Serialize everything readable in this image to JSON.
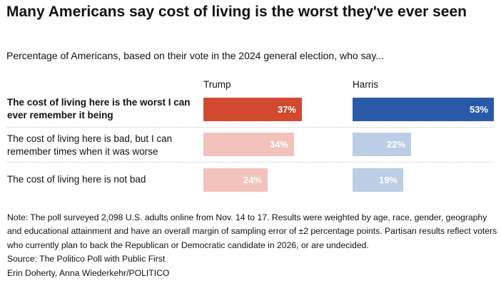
{
  "chart_data": {
    "type": "bar",
    "title": "Many Americans say cost of living is the worst they've ever seen",
    "subtitle": "Percentage of Americans, based on their vote in the 2024 general election, who say...",
    "categories": [
      "The cost of living here is the worst I can ever remember it being",
      "The cost of living here is bad, but I can remember times when it was worse",
      "The cost of living here is not bad"
    ],
    "series": [
      {
        "name": "Trump",
        "values": [
          37,
          34,
          24
        ],
        "labels": [
          "37%",
          "34%",
          "24%"
        ],
        "colors": [
          "#d14a30",
          "#f2c2bb",
          "#f2c2bb"
        ]
      },
      {
        "name": "Harris",
        "values": [
          53,
          22,
          19
        ],
        "labels": [
          "53%",
          "22%",
          "19%"
        ],
        "colors": [
          "#2a5aa7",
          "#bccde6",
          "#bccde6"
        ]
      }
    ],
    "xlim": [
      0,
      100
    ],
    "xlabel": "",
    "ylabel": ""
  },
  "notes": {
    "note": "Note: The poll surveyed 2,098 U.S. adults online from Nov. 14 to 17. Results were weighted by age, race, gender, geography and educational attainment and have an overall margin of sampling error of ±2 percentage points. Partisan results reflect voters who currently plan to back the Republican or Democratic candidate in 2026, or are undecided.",
    "source": "Source: The Politico Poll with Public First",
    "credit": "Erin Doherty, Anna Wiederkehr/POLITICO"
  }
}
